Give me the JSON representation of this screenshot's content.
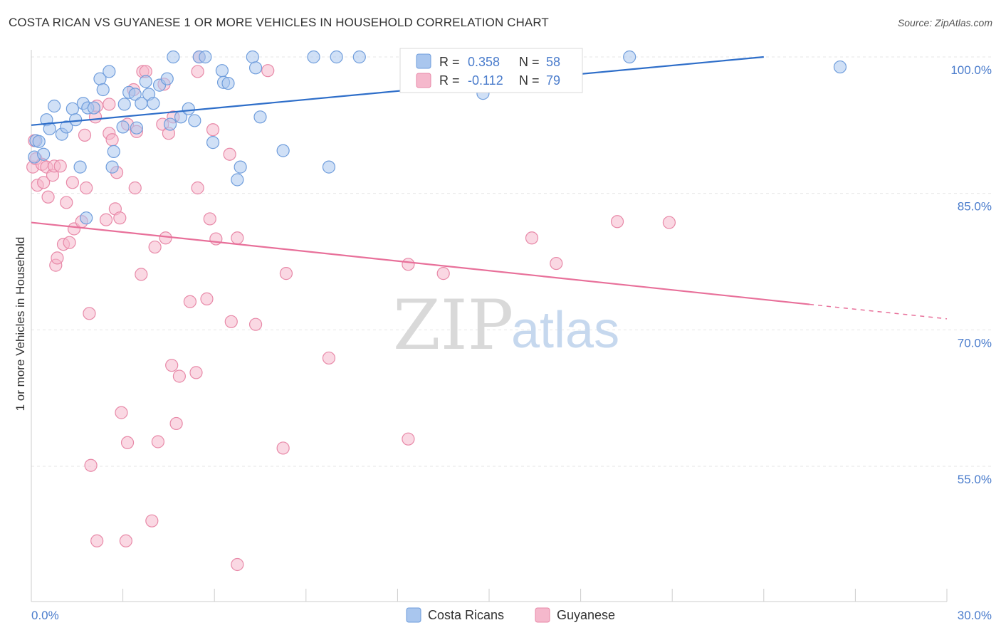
{
  "title": "COSTA RICAN VS GUYANESE 1 OR MORE VEHICLES IN HOUSEHOLD CORRELATION CHART",
  "source": "Source: ZipAtlas.com",
  "watermark": {
    "zip": "ZIP",
    "atlas": "atlas"
  },
  "legend": {
    "rows": [
      {
        "r_label": "R =",
        "r_value": "0.358",
        "n_label": "N =",
        "n_value": "58",
        "color": "#a9c6ee"
      },
      {
        "r_label": "R =",
        "r_value": "-0.112",
        "n_label": "N =",
        "n_value": "79",
        "color": "#f5b8cc"
      }
    ]
  },
  "chart_data": {
    "type": "scatter",
    "title": "COSTA RICAN VS GUYANESE 1 OR MORE VEHICLES IN HOUSEHOLD CORRELATION CHART",
    "xlabel": "",
    "ylabel": "1 or more Vehicles in Household",
    "xlim": [
      0,
      30
    ],
    "ylim": [
      40,
      101.5
    ],
    "x_tick_labels": [
      "0.0%",
      "30.0%"
    ],
    "y_ticks": [
      55,
      70,
      85,
      100
    ],
    "y_tick_labels": [
      "55.0%",
      "70.0%",
      "85.0%",
      "100.0%"
    ],
    "grid": true,
    "legend_placement": "top-center",
    "series": [
      {
        "name": "Costa Ricans",
        "color": "#a9c6ee",
        "stroke": "#6f9ddc",
        "trend": {
          "x0": 0,
          "y0": 92.5,
          "x1": 24.0,
          "y1": 100.0,
          "dashed_to": 24.0
        },
        "points": [
          [
            0.1,
            89.0
          ],
          [
            0.15,
            90.8
          ],
          [
            0.25,
            90.7
          ],
          [
            0.4,
            89.3
          ],
          [
            0.5,
            93.1
          ],
          [
            0.6,
            92.1
          ],
          [
            0.75,
            94.6
          ],
          [
            1.0,
            91.5
          ],
          [
            1.15,
            92.3
          ],
          [
            1.35,
            94.3
          ],
          [
            1.45,
            93.1
          ],
          [
            1.7,
            94.9
          ],
          [
            1.6,
            87.9
          ],
          [
            1.85,
            94.4
          ],
          [
            2.05,
            94.4
          ],
          [
            2.25,
            97.6
          ],
          [
            2.35,
            96.4
          ],
          [
            2.55,
            98.4
          ],
          [
            1.8,
            82.3
          ],
          [
            2.7,
            89.6
          ],
          [
            2.65,
            87.9
          ],
          [
            3.0,
            92.3
          ],
          [
            3.05,
            94.8
          ],
          [
            3.2,
            96.1
          ],
          [
            3.4,
            95.9
          ],
          [
            3.45,
            92.2
          ],
          [
            3.6,
            94.9
          ],
          [
            3.75,
            97.3
          ],
          [
            3.85,
            95.9
          ],
          [
            4.0,
            94.9
          ],
          [
            4.2,
            96.9
          ],
          [
            4.45,
            97.6
          ],
          [
            4.55,
            92.6
          ],
          [
            4.65,
            100.0
          ],
          [
            4.9,
            93.4
          ],
          [
            5.15,
            94.3
          ],
          [
            5.35,
            93.0
          ],
          [
            5.5,
            100.0
          ],
          [
            5.7,
            100.0
          ],
          [
            5.95,
            90.6
          ],
          [
            6.25,
            98.5
          ],
          [
            6.3,
            97.2
          ],
          [
            6.45,
            97.1
          ],
          [
            6.75,
            86.5
          ],
          [
            6.85,
            87.9
          ],
          [
            7.25,
            100.0
          ],
          [
            7.35,
            98.8
          ],
          [
            7.5,
            93.4
          ],
          [
            8.25,
            89.7
          ],
          [
            9.25,
            100.0
          ],
          [
            9.75,
            87.9
          ],
          [
            10.0,
            100.0
          ],
          [
            10.75,
            100.0
          ],
          [
            14.8,
            96.0
          ],
          [
            15.7,
            100.0
          ],
          [
            16.8,
            99.5
          ],
          [
            19.6,
            100.0
          ],
          [
            26.5,
            98.9
          ]
        ]
      },
      {
        "name": "Guyanese",
        "color": "#f5b8cc",
        "stroke": "#e889a8",
        "trend": {
          "x0": 0,
          "y0": 81.8,
          "x1": 25.5,
          "y1": 72.8,
          "dashed_to": 30.0
        },
        "points": [
          [
            0.05,
            87.9
          ],
          [
            0.1,
            90.8
          ],
          [
            0.15,
            88.8
          ],
          [
            0.2,
            85.9
          ],
          [
            0.35,
            88.2
          ],
          [
            0.4,
            86.2
          ],
          [
            0.5,
            87.9
          ],
          [
            0.55,
            84.6
          ],
          [
            0.7,
            87.0
          ],
          [
            0.75,
            88.0
          ],
          [
            0.8,
            77.1
          ],
          [
            0.85,
            77.9
          ],
          [
            0.95,
            88.0
          ],
          [
            1.05,
            79.4
          ],
          [
            1.15,
            84.0
          ],
          [
            1.25,
            79.6
          ],
          [
            1.35,
            86.2
          ],
          [
            1.4,
            81.1
          ],
          [
            1.65,
            81.9
          ],
          [
            1.75,
            91.4
          ],
          [
            1.8,
            85.6
          ],
          [
            1.9,
            71.8
          ],
          [
            1.95,
            55.1
          ],
          [
            2.1,
            93.4
          ],
          [
            2.15,
            46.8
          ],
          [
            2.15,
            94.6
          ],
          [
            2.45,
            82.1
          ],
          [
            2.55,
            91.6
          ],
          [
            2.55,
            94.8
          ],
          [
            2.65,
            90.9
          ],
          [
            2.75,
            83.3
          ],
          [
            2.8,
            87.3
          ],
          [
            2.9,
            82.3
          ],
          [
            2.95,
            60.9
          ],
          [
            3.1,
            46.8
          ],
          [
            3.15,
            57.6
          ],
          [
            3.15,
            92.6
          ],
          [
            3.35,
            96.4
          ],
          [
            3.4,
            85.6
          ],
          [
            3.45,
            91.8
          ],
          [
            3.6,
            76.1
          ],
          [
            3.65,
            98.4
          ],
          [
            3.75,
            98.4
          ],
          [
            3.95,
            49.0
          ],
          [
            4.05,
            79.1
          ],
          [
            4.15,
            57.7
          ],
          [
            4.3,
            92.6
          ],
          [
            4.35,
            97.0
          ],
          [
            4.4,
            80.1
          ],
          [
            4.5,
            91.6
          ],
          [
            4.6,
            66.1
          ],
          [
            4.65,
            93.4
          ],
          [
            4.75,
            59.7
          ],
          [
            4.85,
            64.9
          ],
          [
            5.2,
            73.1
          ],
          [
            5.4,
            65.3
          ],
          [
            5.45,
            85.6
          ],
          [
            5.45,
            98.4
          ],
          [
            5.75,
            73.4
          ],
          [
            5.85,
            82.2
          ],
          [
            5.95,
            92.0
          ],
          [
            6.05,
            80.0
          ],
          [
            6.5,
            89.3
          ],
          [
            6.55,
            70.9
          ],
          [
            6.75,
            80.1
          ],
          [
            6.75,
            44.2
          ],
          [
            7.35,
            70.6
          ],
          [
            7.75,
            98.5
          ],
          [
            8.25,
            57.0
          ],
          [
            8.35,
            76.2
          ],
          [
            9.75,
            66.9
          ],
          [
            12.35,
            77.2
          ],
          [
            12.35,
            58.0
          ],
          [
            13.5,
            76.2
          ],
          [
            16.4,
            80.1
          ],
          [
            17.2,
            77.3
          ],
          [
            19.2,
            81.9
          ],
          [
            20.9,
            81.8
          ],
          [
            5.5,
            100.0
          ]
        ]
      }
    ]
  },
  "bottom_legend": [
    {
      "label": "Costa Ricans",
      "color": "#a9c6ee"
    },
    {
      "label": "Guyanese",
      "color": "#f5b8cc"
    }
  ]
}
